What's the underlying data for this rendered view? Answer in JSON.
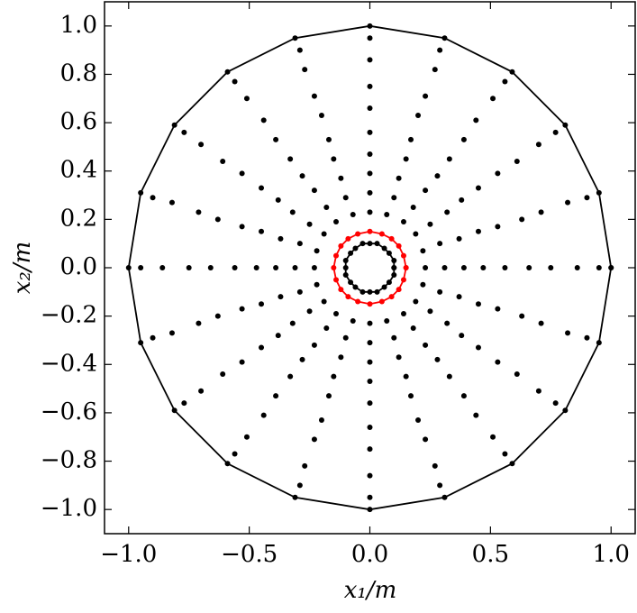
{
  "chart_data": {
    "type": "scatter",
    "xlabel": "x₁/m",
    "ylabel": "x₂/m",
    "xlim": [
      -1.1,
      1.1
    ],
    "ylim": [
      -1.1,
      1.1
    ],
    "grid": false,
    "xticks": [
      {
        "value": -1.0,
        "label": "−1.0"
      },
      {
        "value": -0.5,
        "label": "−0.5"
      },
      {
        "value": 0.0,
        "label": "0.0"
      },
      {
        "value": 0.5,
        "label": "0.5"
      },
      {
        "value": 1.0,
        "label": "1.0"
      }
    ],
    "yticks": [
      {
        "value": -1.0,
        "label": "−1.0"
      },
      {
        "value": -0.8,
        "label": "−0.8"
      },
      {
        "value": -0.6,
        "label": "−0.6"
      },
      {
        "value": -0.4,
        "label": "−0.4"
      },
      {
        "value": -0.2,
        "label": "−0.2"
      },
      {
        "value": 0.0,
        "label": "0.0"
      },
      {
        "value": 0.2,
        "label": "0.2"
      },
      {
        "value": 0.4,
        "label": "0.4"
      },
      {
        "value": 0.6,
        "label": "0.6"
      },
      {
        "value": 0.8,
        "label": "0.8"
      },
      {
        "value": 1.0,
        "label": "1.0"
      }
    ],
    "series": [
      {
        "color": "#000000",
        "line": true,
        "marker": true,
        "x": [
          1,
          0.95,
          0.81,
          0.59,
          0.31,
          0,
          -0.31,
          -0.59,
          -0.81,
          -0.95,
          -1,
          -0.95,
          -0.81,
          -0.59,
          -0.31,
          0,
          0.31,
          0.59,
          0.81,
          0.95,
          1
        ],
        "y": [
          0,
          0.31,
          0.59,
          0.81,
          0.95,
          1,
          0.95,
          0.81,
          0.59,
          0.31,
          0,
          -0.31,
          -0.59,
          -0.81,
          -0.95,
          -1,
          -0.95,
          -0.81,
          -0.59,
          -0.31,
          0
        ]
      },
      {
        "color": "#000000",
        "line": false,
        "marker": true,
        "x": [
          0.95,
          0.9,
          0.77,
          0.56,
          0.29,
          0,
          -0.29,
          -0.56,
          -0.77,
          -0.9,
          -0.95,
          -0.9,
          -0.77,
          -0.56,
          -0.29,
          0,
          0.29,
          0.56,
          0.77,
          0.9
        ],
        "y": [
          0,
          0.29,
          0.56,
          0.77,
          0.9,
          0.95,
          0.9,
          0.77,
          0.56,
          0.29,
          0,
          -0.29,
          -0.56,
          -0.77,
          -0.9,
          -0.95,
          -0.9,
          -0.77,
          -0.56,
          -0.29
        ]
      },
      {
        "color": "#000000",
        "line": false,
        "marker": true,
        "x": [
          0.86,
          0.82,
          0.7,
          0.51,
          0.27,
          0,
          -0.27,
          -0.51,
          -0.7,
          -0.82,
          -0.86,
          -0.82,
          -0.7,
          -0.51,
          -0.27,
          0,
          0.27,
          0.51,
          0.7,
          0.82
        ],
        "y": [
          0,
          0.27,
          0.51,
          0.7,
          0.82,
          0.86,
          0.82,
          0.7,
          0.51,
          0.27,
          0,
          -0.27,
          -0.51,
          -0.7,
          -0.82,
          -0.86,
          -0.82,
          -0.7,
          -0.51,
          -0.27
        ]
      },
      {
        "color": "#000000",
        "line": false,
        "marker": true,
        "x": [
          0.75,
          0.71,
          0.61,
          0.44,
          0.23,
          0,
          -0.23,
          -0.44,
          -0.61,
          -0.71,
          -0.75,
          -0.71,
          -0.61,
          -0.44,
          -0.23,
          0,
          0.23,
          0.44,
          0.61,
          0.71
        ],
        "y": [
          0,
          0.23,
          0.44,
          0.61,
          0.71,
          0.75,
          0.71,
          0.61,
          0.44,
          0.23,
          0,
          -0.23,
          -0.44,
          -0.61,
          -0.71,
          -0.75,
          -0.71,
          -0.61,
          -0.44,
          -0.23
        ]
      },
      {
        "color": "#000000",
        "line": false,
        "marker": true,
        "x": [
          0.66,
          0.63,
          0.53,
          0.39,
          0.2,
          0,
          -0.2,
          -0.39,
          -0.53,
          -0.63,
          -0.66,
          -0.63,
          -0.53,
          -0.39,
          -0.2,
          0,
          0.2,
          0.39,
          0.53,
          0.63
        ],
        "y": [
          0,
          0.2,
          0.39,
          0.53,
          0.63,
          0.66,
          0.63,
          0.53,
          0.39,
          0.2,
          0,
          -0.2,
          -0.39,
          -0.53,
          -0.63,
          -0.66,
          -0.63,
          -0.53,
          -0.39,
          -0.2
        ]
      },
      {
        "color": "#000000",
        "line": false,
        "marker": true,
        "x": [
          0.56,
          0.53,
          0.45,
          0.33,
          0.17,
          0,
          -0.17,
          -0.33,
          -0.45,
          -0.53,
          -0.56,
          -0.53,
          -0.45,
          -0.33,
          -0.17,
          0,
          0.17,
          0.33,
          0.45,
          0.53
        ],
        "y": [
          0,
          0.17,
          0.33,
          0.45,
          0.53,
          0.56,
          0.53,
          0.45,
          0.33,
          0.17,
          0,
          -0.17,
          -0.33,
          -0.45,
          -0.53,
          -0.56,
          -0.53,
          -0.45,
          -0.33,
          -0.17
        ]
      },
      {
        "color": "#000000",
        "line": false,
        "marker": true,
        "x": [
          0.47,
          0.45,
          0.38,
          0.28,
          0.15,
          0,
          -0.15,
          -0.28,
          -0.38,
          -0.45,
          -0.47,
          -0.45,
          -0.38,
          -0.28,
          -0.15,
          0,
          0.15,
          0.28,
          0.38,
          0.45
        ],
        "y": [
          0,
          0.15,
          0.28,
          0.38,
          0.45,
          0.47,
          0.45,
          0.38,
          0.28,
          0.15,
          0,
          -0.15,
          -0.28,
          -0.38,
          -0.45,
          -0.47,
          -0.45,
          -0.38,
          -0.28,
          -0.15
        ]
      },
      {
        "color": "#000000",
        "line": false,
        "marker": true,
        "x": [
          0.39,
          0.37,
          0.32,
          0.23,
          0.12,
          0,
          -0.12,
          -0.23,
          -0.32,
          -0.37,
          -0.39,
          -0.37,
          -0.32,
          -0.23,
          -0.12,
          0,
          0.12,
          0.23,
          0.32,
          0.37
        ],
        "y": [
          0,
          0.12,
          0.23,
          0.32,
          0.37,
          0.39,
          0.37,
          0.32,
          0.23,
          0.12,
          0,
          -0.12,
          -0.23,
          -0.32,
          -0.37,
          -0.39,
          -0.37,
          -0.32,
          -0.23,
          -0.12
        ]
      },
      {
        "color": "#000000",
        "line": false,
        "marker": true,
        "x": [
          0.31,
          0.29,
          0.25,
          0.18,
          0.1,
          0,
          -0.1,
          -0.18,
          -0.25,
          -0.29,
          -0.31,
          -0.29,
          -0.25,
          -0.18,
          -0.1,
          0,
          0.1,
          0.18,
          0.25,
          0.29
        ],
        "y": [
          0,
          0.1,
          0.18,
          0.25,
          0.29,
          0.31,
          0.29,
          0.25,
          0.18,
          0.1,
          0,
          -0.1,
          -0.18,
          -0.25,
          -0.29,
          -0.31,
          -0.29,
          -0.25,
          -0.18,
          -0.1
        ]
      },
      {
        "color": "#000000",
        "line": false,
        "marker": true,
        "x": [
          0.23,
          0.22,
          0.19,
          0.14,
          0.07,
          0,
          -0.07,
          -0.14,
          -0.19,
          -0.22,
          -0.23,
          -0.22,
          -0.19,
          -0.14,
          -0.07,
          0,
          0.07,
          0.14,
          0.19,
          0.22
        ],
        "y": [
          0,
          0.07,
          0.14,
          0.19,
          0.22,
          0.23,
          0.22,
          0.19,
          0.14,
          0.07,
          0,
          -0.07,
          -0.14,
          -0.19,
          -0.22,
          -0.23,
          -0.22,
          -0.19,
          -0.14,
          -0.07
        ]
      },
      {
        "color": "#ff0000",
        "line": true,
        "marker": true,
        "x": [
          0.15,
          0.14,
          0.12,
          0.09,
          0.05,
          0,
          -0.05,
          -0.09,
          -0.12,
          -0.14,
          -0.15,
          -0.14,
          -0.12,
          -0.09,
          -0.05,
          0,
          0.05,
          0.09,
          0.12,
          0.14,
          0.15
        ],
        "y": [
          0,
          0.05,
          0.09,
          0.12,
          0.14,
          0.15,
          0.14,
          0.12,
          0.09,
          0.05,
          0,
          -0.05,
          -0.09,
          -0.12,
          -0.14,
          -0.15,
          -0.14,
          -0.12,
          -0.09,
          -0.05,
          0
        ]
      },
      {
        "color": "#000000",
        "line": true,
        "marker": true,
        "x": [
          0.1,
          0.1,
          0.08,
          0.06,
          0.03,
          0,
          -0.03,
          -0.06,
          -0.08,
          -0.1,
          -0.1,
          -0.1,
          -0.08,
          -0.06,
          -0.03,
          0,
          0.03,
          0.06,
          0.08,
          0.1,
          0.1
        ],
        "y": [
          0,
          0.03,
          0.06,
          0.08,
          0.1,
          0.1,
          0.1,
          0.08,
          0.06,
          0.03,
          0,
          -0.03,
          -0.06,
          -0.08,
          -0.1,
          -0.1,
          -0.1,
          -0.08,
          -0.06,
          -0.03,
          0
        ]
      }
    ]
  }
}
